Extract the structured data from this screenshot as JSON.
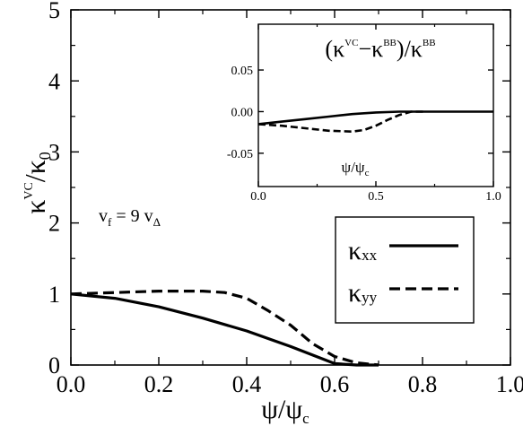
{
  "chart_data": [
    {
      "type": "line",
      "xlabel": "ψ/ψ",
      "xlabel_sub": "c",
      "ylabel": "κ",
      "ylabel_sup": "VC",
      "ylabel_tail": "/κ",
      "ylabel_tail_sub": "0",
      "xlim": [
        0.0,
        1.0
      ],
      "ylim": [
        0,
        5
      ],
      "xticks": [
        "0.0",
        "0.2",
        "0.4",
        "0.6",
        "0.8",
        "1.0"
      ],
      "yticks": [
        "0",
        "1",
        "2",
        "3",
        "4",
        "5"
      ],
      "annotation": {
        "v": "v",
        "v_sub": "f",
        "eq": " = 9 v",
        "eq_sub": "Δ"
      },
      "legend_position": "lower-right",
      "series": [
        {
          "name": "κxx",
          "name_main": "κ",
          "name_sub": "xx",
          "style": "solid",
          "x": [
            0.0,
            0.1,
            0.2,
            0.3,
            0.4,
            0.5,
            0.6,
            0.65,
            0.7
          ],
          "y": [
            1.0,
            0.94,
            0.82,
            0.66,
            0.48,
            0.26,
            0.02,
            0.0,
            0.0
          ]
        },
        {
          "name": "κyy",
          "name_main": "κ",
          "name_sub": "yy",
          "style": "dashed",
          "x": [
            0.0,
            0.1,
            0.2,
            0.3,
            0.35,
            0.4,
            0.45,
            0.5,
            0.55,
            0.6,
            0.65,
            0.7
          ],
          "y": [
            1.0,
            1.02,
            1.04,
            1.04,
            1.02,
            0.94,
            0.76,
            0.56,
            0.3,
            0.12,
            0.03,
            0.0
          ]
        }
      ]
    },
    {
      "type": "line",
      "title": "(κ",
      "title_sup1": "VC",
      "title_mid": "−κ",
      "title_sup2": "BB",
      "title_tail": ")/κ",
      "title_sup3": "BB",
      "xlabel": "ψ/ψ",
      "xlabel_sub": "c",
      "xlim": [
        0.0,
        1.0
      ],
      "ylim": [
        -0.09,
        0.105
      ],
      "xticks": [
        "0.0",
        "0.5",
        "1.0"
      ],
      "yticks": [
        "0.05",
        "0.00",
        "-0.05"
      ],
      "ytick_values": [
        0.05,
        0.0,
        -0.05
      ],
      "series": [
        {
          "name": "κxx",
          "style": "solid",
          "x": [
            0.0,
            0.1,
            0.2,
            0.3,
            0.4,
            0.5,
            0.6,
            0.7,
            0.8,
            0.9,
            1.0
          ],
          "y": [
            -0.015,
            -0.012,
            -0.009,
            -0.006,
            -0.003,
            -0.001,
            0.0,
            0.0,
            0.0,
            0.0,
            0.0
          ]
        },
        {
          "name": "κyy",
          "style": "dashed",
          "x": [
            0.0,
            0.1,
            0.2,
            0.3,
            0.4,
            0.45,
            0.5,
            0.55,
            0.6,
            0.65,
            0.7
          ],
          "y": [
            -0.015,
            -0.017,
            -0.02,
            -0.023,
            -0.024,
            -0.022,
            -0.017,
            -0.01,
            -0.004,
            0.0,
            0.0
          ]
        }
      ]
    }
  ]
}
